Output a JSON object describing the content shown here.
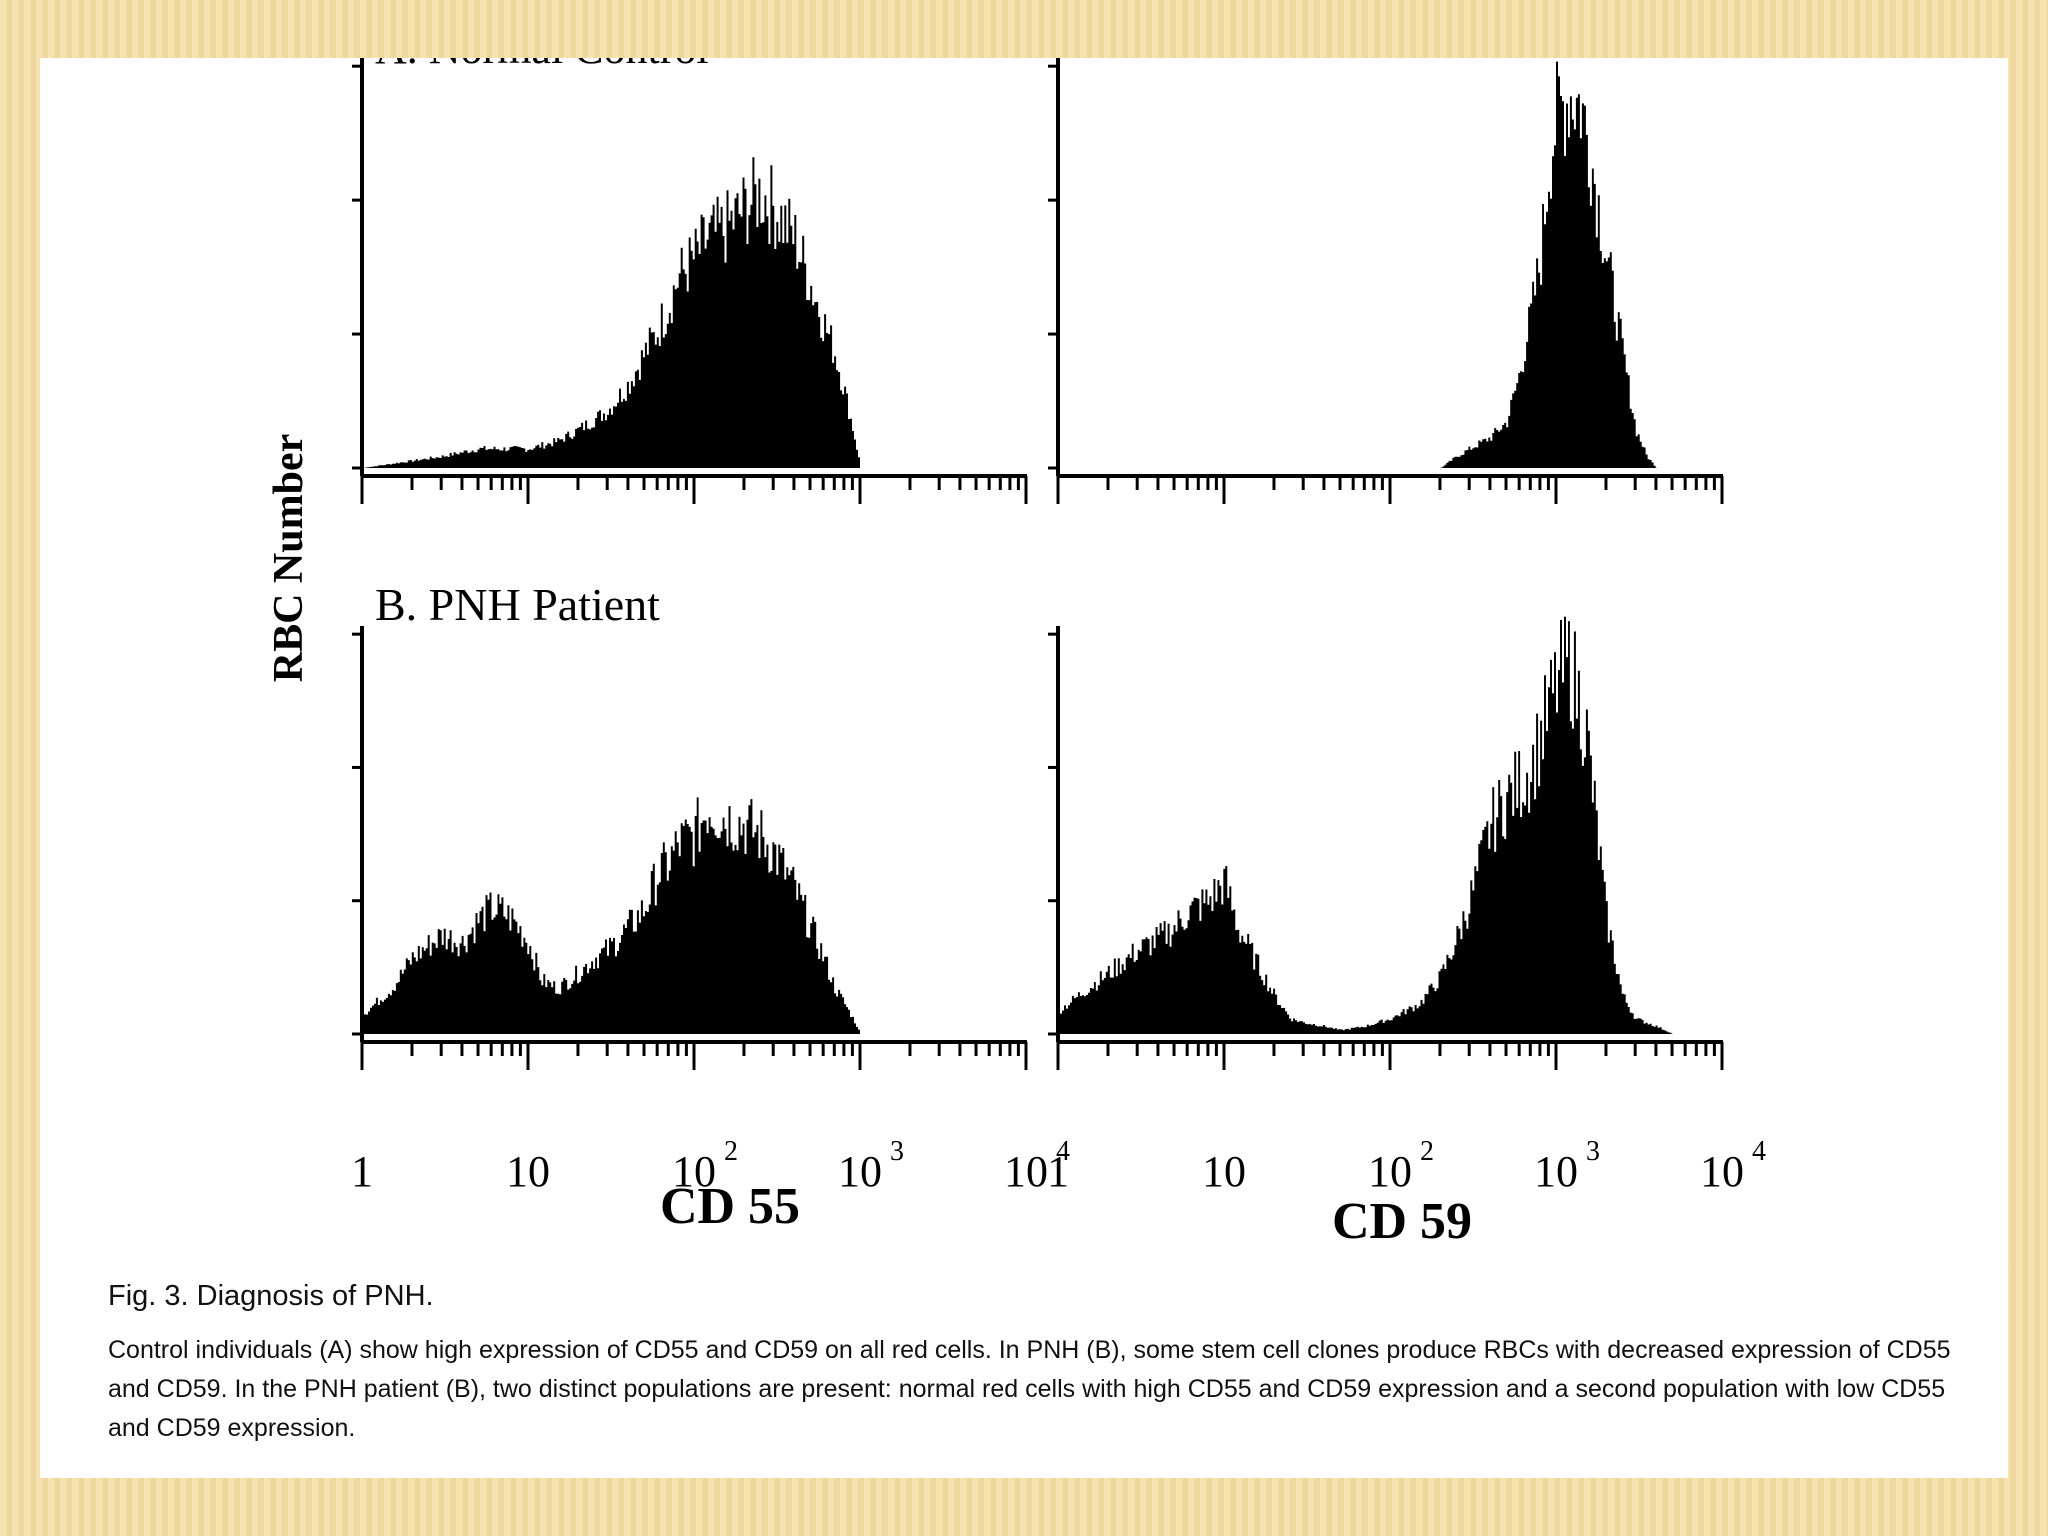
{
  "caption": {
    "title": "Fig. 3. Diagnosis of PNH.",
    "body": "Control individuals (A) show high expression of CD55 and CD59 on all red cells. In PNH (B), some stem cell clones produce RBCs with decreased expression of CD55 and CD59. In the PNH patient (B), two distinct populations are present: normal red cells with high CD55 and CD59 expression and a second population with low CD55 and CD59 expression."
  },
  "chart_data": [
    {
      "type": "area",
      "panel": "A",
      "title": "A. Normal Control",
      "xlabel": "",
      "ylabel": "RBC Number",
      "xscale": "log",
      "xlim": [
        1,
        10000
      ],
      "x": [
        1,
        3,
        5,
        7,
        10,
        15,
        20,
        30,
        40,
        50,
        60,
        70,
        80,
        100,
        120,
        150,
        200,
        250,
        300,
        400,
        500,
        600,
        700,
        800,
        900,
        1000
      ],
      "values": [
        0,
        0.03,
        0.05,
        0.05,
        0.05,
        0.07,
        0.1,
        0.15,
        0.22,
        0.3,
        0.36,
        0.43,
        0.5,
        0.55,
        0.6,
        0.62,
        0.68,
        0.72,
        0.68,
        0.6,
        0.48,
        0.38,
        0.3,
        0.2,
        0.1,
        0
      ]
    },
    {
      "type": "area",
      "panel": "A",
      "title": "",
      "xlabel": "",
      "ylabel": "",
      "xscale": "log",
      "xlim": [
        1,
        10000
      ],
      "x": [
        1,
        200,
        250,
        300,
        400,
        500,
        600,
        700,
        800,
        900,
        1000,
        1200,
        1400,
        1600,
        2000,
        2500,
        3000,
        3500,
        4000
      ],
      "values": [
        0,
        0,
        0.03,
        0.05,
        0.08,
        0.12,
        0.25,
        0.4,
        0.55,
        0.8,
        0.92,
        0.98,
        0.95,
        0.82,
        0.55,
        0.3,
        0.1,
        0.03,
        0
      ]
    },
    {
      "type": "area",
      "panel": "B",
      "title": "B. PNH Patient",
      "xlabel": "CD 55",
      "ylabel": "RBC Number",
      "xscale": "log",
      "xlim": [
        1,
        10000
      ],
      "x": [
        1,
        1.5,
        2,
        3,
        4,
        5,
        6,
        7,
        8,
        10,
        12,
        15,
        20,
        25,
        30,
        40,
        50,
        60,
        70,
        80,
        100,
        120,
        150,
        200,
        250,
        300,
        400,
        500,
        600,
        700,
        800,
        900,
        1000
      ],
      "values": [
        0.05,
        0.12,
        0.2,
        0.26,
        0.24,
        0.3,
        0.33,
        0.32,
        0.3,
        0.24,
        0.14,
        0.12,
        0.16,
        0.2,
        0.22,
        0.28,
        0.33,
        0.42,
        0.45,
        0.5,
        0.52,
        0.6,
        0.57,
        0.55,
        0.52,
        0.48,
        0.38,
        0.28,
        0.2,
        0.12,
        0.08,
        0.04,
        0
      ]
    },
    {
      "type": "area",
      "panel": "B",
      "title": "",
      "xlabel": "CD 59",
      "ylabel": "",
      "xscale": "log",
      "xlim": [
        1,
        10000
      ],
      "x": [
        1,
        1.5,
        2,
        3,
        4,
        5,
        6,
        8,
        10,
        12,
        15,
        20,
        25,
        30,
        40,
        50,
        70,
        100,
        150,
        200,
        250,
        300,
        400,
        500,
        600,
        700,
        800,
        1000,
        1200,
        1500,
        2000,
        2500,
        3000,
        4000,
        5000
      ],
      "values": [
        0.06,
        0.12,
        0.16,
        0.22,
        0.25,
        0.28,
        0.32,
        0.35,
        0.4,
        0.28,
        0.2,
        0.1,
        0.04,
        0.03,
        0.02,
        0.01,
        0.02,
        0.04,
        0.08,
        0.15,
        0.25,
        0.35,
        0.55,
        0.62,
        0.66,
        0.7,
        0.78,
        0.92,
        0.98,
        0.8,
        0.3,
        0.1,
        0.04,
        0.02,
        0
      ]
    }
  ],
  "ticklabels": [
    "1",
    "10",
    "10",
    "10",
    "10"
  ],
  "tickexp": [
    "",
    "",
    "2",
    "3",
    "4"
  ],
  "xlabels": {
    "cd55": "CD 55",
    "cd59": "CD 59"
  },
  "ylabel": "RBC Number",
  "panel_titles": {
    "a": "A. Normal Control",
    "b": "B. PNH Patient"
  }
}
